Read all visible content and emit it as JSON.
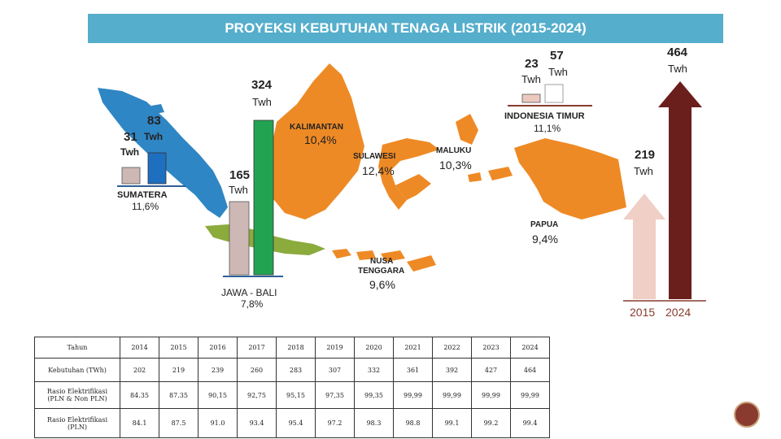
{
  "title": "PROYEKSI KEBUTUHAN TENAGA LISTRIK (2015-2024)",
  "regions": {
    "sumatera": {
      "name": "SUMATERA",
      "growth": "11,6%",
      "v2015": "31",
      "v2015_unit": "Twh",
      "v2024": "83",
      "v2024_unit": "Twh"
    },
    "jawa_bali": {
      "name": "JAWA - BALI",
      "growth": "7,8%",
      "v2015": "165",
      "v2015_unit": "Twh",
      "v2024": "324",
      "v2024_unit": "Twh"
    },
    "kalimantan": {
      "name": "KALIMANTAN",
      "growth": "10,4%"
    },
    "sulawesi": {
      "name": "SULAWESI",
      "growth": "12,4%"
    },
    "maluku": {
      "name": "MALUKU",
      "growth": "10,3%"
    },
    "papua": {
      "name": "PAPUA",
      "growth": "9,4%"
    },
    "nusa_tenggara": {
      "name_line1": "NUSA",
      "name_line2": "TENGGARA",
      "growth": "9,6%"
    },
    "indonesia_timur": {
      "name": "INDONESIA TIMUR",
      "growth": "11,1%",
      "v2015": "23",
      "v2015_unit": "Twh",
      "v2024": "57",
      "v2024_unit": "Twh"
    }
  },
  "national": {
    "v2015": "219",
    "v2015_unit": "Twh",
    "v2024": "464",
    "v2024_unit": "Twh",
    "year_2015": "2015",
    "year_2024": "2024"
  },
  "colors": {
    "title_bg": "#55aecb",
    "sumatera": "#2f86c4",
    "jawa_bali": "#8bab3d",
    "kalimantan": "#ee8a25",
    "bar_2015": "#cdb8b5",
    "bar_sum_2024": "#1f6fc0",
    "bar_jawa_2024": "#22a352",
    "arrow_2015": "#efcfc6",
    "arrow_2024": "#6b1f1c",
    "bar_timur_2015": "#ecc9bf"
  },
  "chart_data": [
    {
      "type": "bar",
      "title": "SUMATERA",
      "categories": [
        "2015",
        "2024"
      ],
      "values": [
        31,
        83
      ],
      "unit": "Twh",
      "growth": "11,6%"
    },
    {
      "type": "bar",
      "title": "JAWA - BALI",
      "categories": [
        "2015",
        "2024"
      ],
      "values": [
        165,
        324
      ],
      "unit": "Twh",
      "growth": "7,8%"
    },
    {
      "type": "bar",
      "title": "INDONESIA TIMUR",
      "categories": [
        "2015",
        "2024"
      ],
      "values": [
        23,
        57
      ],
      "unit": "Twh",
      "growth": "11,1%"
    },
    {
      "type": "bar",
      "categories": [
        "2015",
        "2024"
      ],
      "values": [
        219,
        464
      ],
      "unit": "Twh"
    }
  ],
  "table": {
    "header": [
      "Tahun",
      "2014",
      "2015",
      "2016",
      "2017",
      "2018",
      "2019",
      "2020",
      "2021",
      "2022",
      "2023",
      "2024"
    ],
    "rows": [
      {
        "label": "Kebutuhan (TWh)",
        "values": [
          "202",
          "219",
          "239",
          "260",
          "283",
          "307",
          "332",
          "361",
          "392",
          "427",
          "464"
        ]
      },
      {
        "label_line1": "Rasio Elektrifikasi",
        "label_line2": "(PLN & Non PLN)",
        "values": [
          "84.35",
          "87.35",
          "90,15",
          "92,75",
          "95,15",
          "97,35",
          "99,35",
          "99,99",
          "99,99",
          "99,99",
          "99,99"
        ]
      },
      {
        "label_line1": "Rasio Elektrifikasi",
        "label_line2": "(PLN)",
        "values": [
          "84.1",
          "87.5",
          "91.0",
          "93.4",
          "95.4",
          "97.2",
          "98.3",
          "98.8",
          "99.1",
          "99.2",
          "99.4"
        ]
      }
    ]
  }
}
